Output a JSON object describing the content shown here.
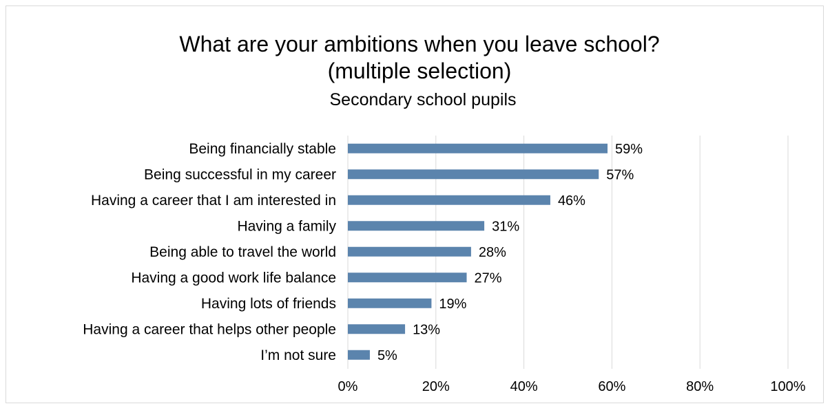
{
  "chart_data": {
    "type": "bar",
    "orientation": "horizontal",
    "title": "What are your ambitions when you leave school? (multiple selection)",
    "title_lines": [
      "What are your ambitions when you leave school?",
      "(multiple selection)"
    ],
    "subtitle": "Secondary school pupils",
    "categories": [
      "Being financially stable",
      "Being successful in my career",
      "Having a career that I am interested in",
      "Having a family",
      "Being able to travel the world",
      "Having a good work life balance",
      "Having lots of friends",
      "Having a career that helps other people",
      "I’m not sure"
    ],
    "values": [
      59,
      57,
      46,
      31,
      28,
      27,
      19,
      13,
      5
    ],
    "value_labels": [
      "59%",
      "57%",
      "46%",
      "31%",
      "28%",
      "27%",
      "19%",
      "13%",
      "5%"
    ],
    "xlim": [
      0,
      100
    ],
    "xticks": [
      0,
      20,
      40,
      60,
      80,
      100
    ],
    "xtick_labels": [
      "0%",
      "20%",
      "40%",
      "60%",
      "80%",
      "100%"
    ],
    "xlabel": "",
    "ylabel": "",
    "grid": true,
    "legend": "none",
    "bar_color": "#5b84ad",
    "gridline_color": "#d9d9d9"
  }
}
